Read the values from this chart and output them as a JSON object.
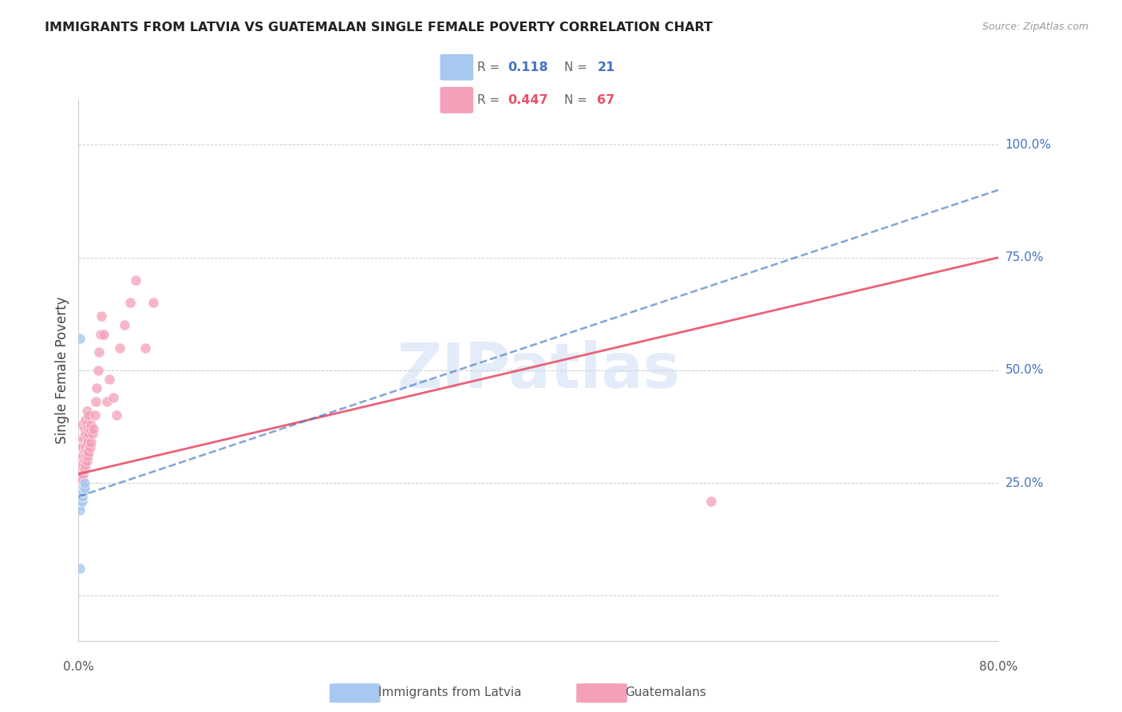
{
  "title": "IMMIGRANTS FROM LATVIA VS GUATEMALAN SINGLE FEMALE POVERTY CORRELATION CHART",
  "source": "Source: ZipAtlas.com",
  "ylabel": "Single Female Poverty",
  "watermark": "ZIPatlas",
  "xlim": [
    0.0,
    0.8
  ],
  "ylim": [
    -0.1,
    1.1
  ],
  "color_blue": "#a8c8f0",
  "color_pink": "#f4a0b8",
  "color_blue_line": "#4472c4",
  "color_pink_line": "#e8506a",
  "color_ytick": "#4472c4",
  "legend1_R": "0.118",
  "legend1_N": "21",
  "legend2_R": "0.447",
  "legend2_N": "67",
  "latvia_x": [
    0.001,
    0.001,
    0.001,
    0.002,
    0.002,
    0.002,
    0.002,
    0.003,
    0.003,
    0.003,
    0.003,
    0.003,
    0.003,
    0.003,
    0.004,
    0.004,
    0.004,
    0.005,
    0.005,
    0.005,
    0.001
  ],
  "latvia_y": [
    0.2,
    0.19,
    0.06,
    0.22,
    0.22,
    0.21,
    0.23,
    0.21,
    0.22,
    0.23,
    0.22,
    0.23,
    0.23,
    0.24,
    0.23,
    0.24,
    0.23,
    0.24,
    0.24,
    0.25,
    0.57
  ],
  "guatemala_x": [
    0.001,
    0.001,
    0.001,
    0.002,
    0.002,
    0.002,
    0.002,
    0.002,
    0.002,
    0.003,
    0.003,
    0.003,
    0.003,
    0.003,
    0.003,
    0.003,
    0.004,
    0.004,
    0.004,
    0.004,
    0.004,
    0.005,
    0.005,
    0.005,
    0.005,
    0.005,
    0.006,
    0.006,
    0.006,
    0.006,
    0.006,
    0.007,
    0.007,
    0.007,
    0.007,
    0.007,
    0.008,
    0.008,
    0.008,
    0.009,
    0.009,
    0.009,
    0.01,
    0.01,
    0.011,
    0.011,
    0.012,
    0.013,
    0.014,
    0.015,
    0.016,
    0.017,
    0.018,
    0.019,
    0.02,
    0.022,
    0.025,
    0.027,
    0.03,
    0.033,
    0.036,
    0.04,
    0.045,
    0.05,
    0.058,
    0.065,
    0.55
  ],
  "guatemala_y": [
    0.26,
    0.27,
    0.3,
    0.25,
    0.27,
    0.29,
    0.3,
    0.31,
    0.33,
    0.26,
    0.28,
    0.3,
    0.31,
    0.33,
    0.35,
    0.38,
    0.27,
    0.29,
    0.31,
    0.33,
    0.35,
    0.28,
    0.3,
    0.32,
    0.35,
    0.37,
    0.29,
    0.31,
    0.33,
    0.36,
    0.39,
    0.3,
    0.32,
    0.35,
    0.38,
    0.41,
    0.31,
    0.34,
    0.37,
    0.32,
    0.36,
    0.4,
    0.33,
    0.37,
    0.34,
    0.38,
    0.36,
    0.37,
    0.4,
    0.43,
    0.46,
    0.5,
    0.54,
    0.58,
    0.62,
    0.58,
    0.43,
    0.48,
    0.44,
    0.4,
    0.55,
    0.6,
    0.65,
    0.7,
    0.55,
    0.65,
    0.21
  ],
  "trend_pink_x0": 0.0,
  "trend_pink_y0": 0.27,
  "trend_pink_x1": 0.8,
  "trend_pink_y1": 0.75,
  "trend_blue_x0": 0.0,
  "trend_blue_y0": 0.22,
  "trend_blue_x1": 0.8,
  "trend_blue_y1": 0.9
}
